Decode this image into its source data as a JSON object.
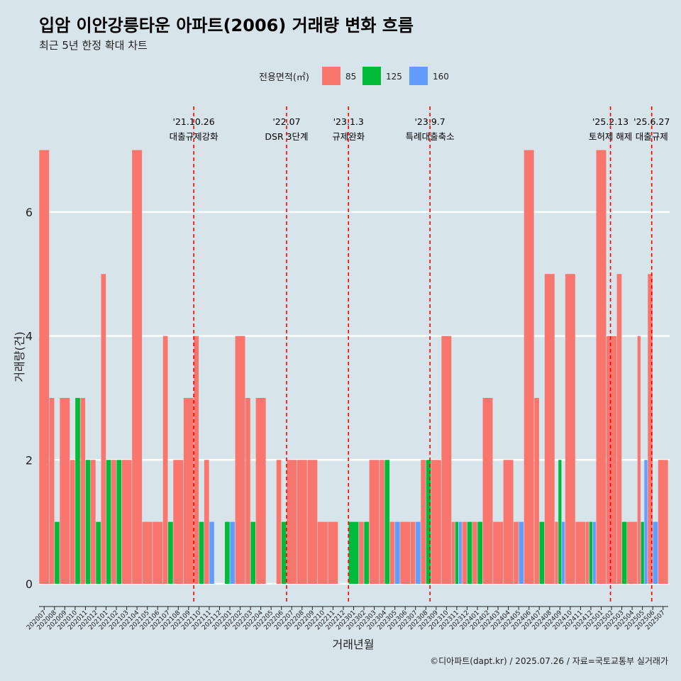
{
  "chart_data": {
    "type": "bar",
    "title": "입암 이안강릉타운 아파트(2006) 거래량 변화 흐름",
    "subtitle": "최근 5년 한정 확대 차트",
    "xlabel": "거래년월",
    "ylabel": "거래량(건)",
    "ylim": [
      -0.3,
      7.3
    ],
    "yticks": [
      0,
      2,
      4,
      6
    ],
    "legend": {
      "title": "전용면적(㎡)",
      "position": "top",
      "entries": [
        {
          "name": "85",
          "color": "#F8766D"
        },
        {
          "name": "125",
          "color": "#00BA38"
        },
        {
          "name": "160",
          "color": "#619CFF"
        }
      ]
    },
    "categories": [
      "202007",
      "202008",
      "202009",
      "202010",
      "202011",
      "202012",
      "202101",
      "202102",
      "202103",
      "202104",
      "202105",
      "202106",
      "202107",
      "202108",
      "202109",
      "202110",
      "202111",
      "202112",
      "202201",
      "202202",
      "202203",
      "202204",
      "202205",
      "202206",
      "202207",
      "202208",
      "202209",
      "202210",
      "202211",
      "202212",
      "202301",
      "202302",
      "202303",
      "202304",
      "202305",
      "202306",
      "202307",
      "202308",
      "202309",
      "202310",
      "202311",
      "202312",
      "202401",
      "202402",
      "202403",
      "202404",
      "202405",
      "202406",
      "202407",
      "202408",
      "202409",
      "202410",
      "202411",
      "202412",
      "202501",
      "202502",
      "202503",
      "202504",
      "202505",
      "202506",
      "202507"
    ],
    "series": [
      {
        "name": "85",
        "color": "#F8766D",
        "values": [
          7,
          3,
          3,
          2,
          3,
          2,
          5,
          2,
          2,
          7,
          1,
          1,
          4,
          2,
          3,
          4,
          2,
          0,
          0,
          4,
          3,
          3,
          0,
          2,
          2,
          2,
          2,
          1,
          1,
          0,
          0,
          1,
          2,
          2,
          1,
          1,
          1,
          2,
          2,
          4,
          1,
          1,
          1,
          3,
          1,
          2,
          1,
          7,
          3,
          5,
          1,
          5,
          1,
          1,
          7,
          4,
          5,
          1,
          4,
          5,
          2
        ]
      },
      {
        "name": "125",
        "color": "#00BA38",
        "values": [
          0,
          1,
          0,
          3,
          2,
          1,
          2,
          2,
          0,
          0,
          0,
          0,
          1,
          0,
          0,
          1,
          0,
          0,
          1,
          0,
          1,
          0,
          0,
          1,
          0,
          0,
          0,
          0,
          0,
          0,
          1,
          1,
          0,
          2,
          0,
          0,
          0,
          2,
          0,
          0,
          1,
          1,
          1,
          0,
          0,
          0,
          0,
          0,
          1,
          0,
          2,
          0,
          0,
          1,
          0,
          0,
          1,
          0,
          1,
          0,
          0
        ]
      },
      {
        "name": "160",
        "color": "#619CFF",
        "values": [
          0,
          0,
          0,
          0,
          0,
          0,
          0,
          0,
          0,
          0,
          0,
          0,
          0,
          0,
          0,
          0,
          1,
          0,
          1,
          0,
          0,
          0,
          0,
          0,
          0,
          0,
          0,
          0,
          0,
          0,
          0,
          0,
          0,
          0,
          1,
          0,
          1,
          0,
          0,
          0,
          1,
          0,
          0,
          0,
          0,
          0,
          1,
          0,
          0,
          0,
          1,
          0,
          0,
          1,
          0,
          0,
          0,
          0,
          2,
          1,
          0
        ]
      }
    ],
    "events": [
      {
        "x": 15.0,
        "date": "'21.10.26",
        "label": "대출규제강화"
      },
      {
        "x": 24.0,
        "date": "'22.07",
        "label": "DSR 3단계"
      },
      {
        "x": 30.0,
        "date": "'23.1.3",
        "label": "규제완화"
      },
      {
        "x": 37.9,
        "date": "'23.9.7",
        "label": "특례대출축소"
      },
      {
        "x": 55.4,
        "date": "'25.2.13",
        "label": "토허제 해제"
      },
      {
        "x": 59.4,
        "date": "'25.6.27",
        "label": "대출규제"
      }
    ],
    "caption": "©디아파트(dapt.kr) / 2025.07.26 / 자료=국토교통부 실거래가"
  }
}
